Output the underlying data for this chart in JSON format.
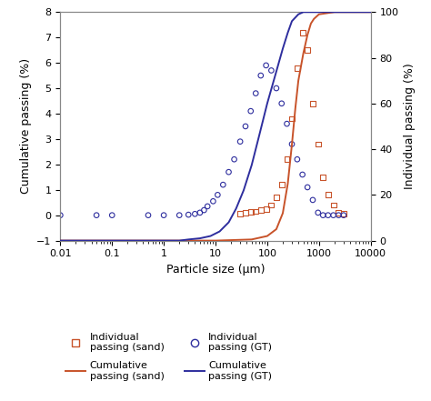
{
  "xlabel": "Particle size (μm)",
  "ylabel_left": "Cumulative passing (%)",
  "ylabel_right": "Individual passing (%)",
  "xlim_log": [
    0.01,
    10000
  ],
  "ylim_left": [
    -1,
    8
  ],
  "ylim_right": [
    0,
    100
  ],
  "yticks_left": [
    -1,
    0,
    1,
    2,
    3,
    4,
    5,
    6,
    7,
    8
  ],
  "yticks_right": [
    0,
    20,
    40,
    60,
    80,
    100
  ],
  "color_sand": "#c8532a",
  "color_gt": "#2e2e9e",
  "background": "#ffffff",
  "sand_individual_x": [
    30,
    38,
    48,
    60,
    75,
    95,
    120,
    150,
    190,
    240,
    300,
    380,
    480,
    600,
    760,
    960,
    1200,
    1500,
    1900,
    2400,
    3000
  ],
  "sand_individual_y": [
    0.05,
    0.08,
    0.12,
    0.15,
    0.2,
    0.25,
    0.4,
    0.7,
    1.2,
    2.2,
    3.8,
    5.8,
    7.2,
    6.5,
    4.4,
    2.8,
    1.5,
    0.8,
    0.4,
    0.1,
    0.05
  ],
  "sand_cumulative_x": [
    0.01,
    0.1,
    1,
    10,
    50,
    100,
    150,
    200,
    250,
    300,
    350,
    400,
    500,
    600,
    700,
    800,
    1000,
    2000,
    5000,
    10000
  ],
  "sand_cumulative_y": [
    0,
    0,
    0,
    0,
    0.5,
    2,
    5,
    12,
    25,
    42,
    58,
    70,
    82,
    90,
    95,
    97,
    99,
    100,
    100,
    100
  ],
  "gt_individual_x": [
    0.01,
    0.05,
    0.1,
    0.5,
    1,
    2,
    3,
    4,
    5,
    6,
    7,
    9,
    11,
    14,
    18,
    23,
    30,
    38,
    48,
    60,
    75,
    95,
    120,
    150,
    190,
    240,
    300,
    380,
    480,
    600,
    760,
    960,
    1200,
    1500,
    1900,
    2400,
    3000
  ],
  "gt_individual_y": [
    0,
    0,
    0,
    0,
    0,
    0,
    0.02,
    0.05,
    0.1,
    0.2,
    0.35,
    0.55,
    0.8,
    1.2,
    1.7,
    2.2,
    2.9,
    3.5,
    4.1,
    4.8,
    5.5,
    5.9,
    5.7,
    5.0,
    4.4,
    3.6,
    2.8,
    2.2,
    1.6,
    1.1,
    0.6,
    0.1,
    0,
    0,
    0,
    0,
    0
  ],
  "gt_cumulative_x": [
    0.01,
    0.1,
    1,
    2,
    3,
    5,
    8,
    12,
    18,
    25,
    35,
    50,
    70,
    100,
    150,
    200,
    250,
    300,
    400,
    500,
    600,
    800,
    1000,
    2000,
    5000,
    10000
  ],
  "gt_cumulative_y": [
    0,
    0,
    0,
    0,
    0.5,
    1,
    2,
    4,
    8,
    14,
    22,
    33,
    46,
    60,
    74,
    84,
    91,
    96,
    99,
    100,
    100,
    100,
    100,
    100,
    100,
    100
  ]
}
